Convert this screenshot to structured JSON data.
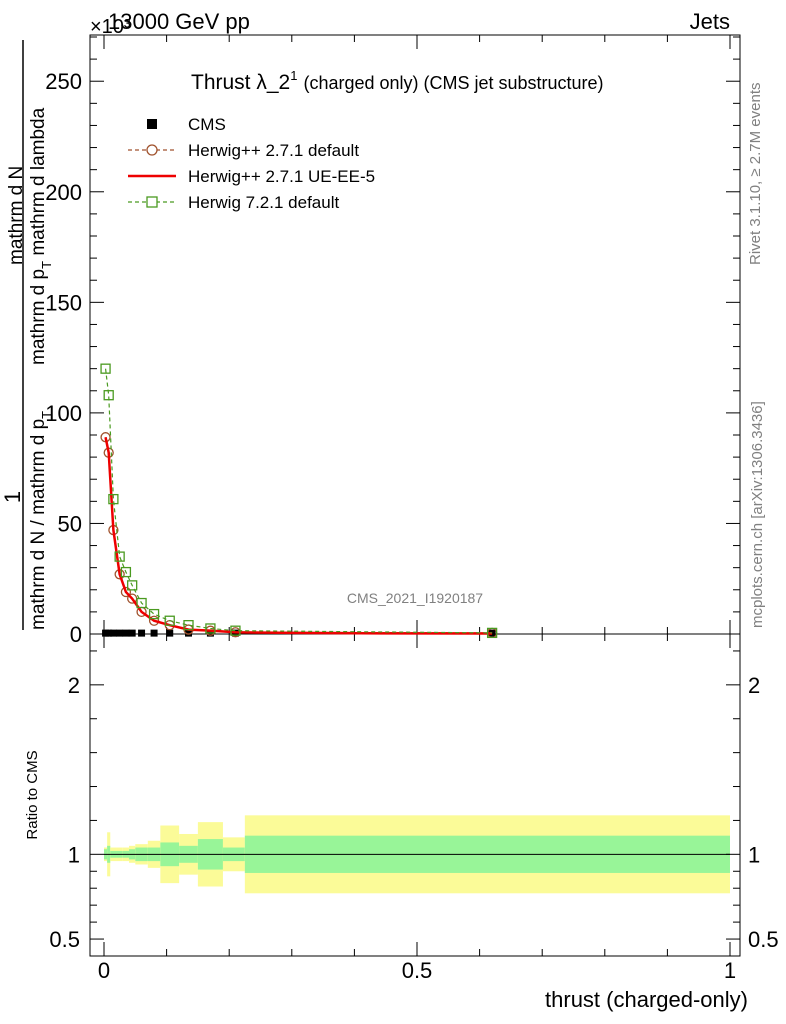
{
  "header": {
    "energy": "13000 GeV pp",
    "process": "Jets",
    "exponent": "×10³"
  },
  "side_labels": {
    "rivet": "Rivet 3.1.10, ≥ 2.7M events",
    "mcplots": "mcplots.cern.ch [arXiv:1306.3436]"
  },
  "chart_data": {
    "type": "line",
    "title_main": "Thrust λ_2",
    "title_sup": "1",
    "title_tail": "(charged only) (CMS jet substructure)",
    "watermark": "CMS_2021_I1920187",
    "xlabel": "thrust (charged-only)",
    "ylabel_top": "1",
    "ylabel_bottom_line1": "mathrm d N / mathrm d p",
    "ylabel_bottom_sub1": "T",
    "ylabel_bottom_line2": "mathrm d N",
    "ylabel_bottom_line3": "mathrm d p",
    "ylabel_bottom_sub3": "T",
    "ylabel_bottom_line4": "mathrm d lambda",
    "ratio_ylabel": "Ratio to CMS",
    "xlim": [
      0,
      1
    ],
    "ylim": [
      0,
      270
    ],
    "ratio_ylim": [
      0.4,
      2.3
    ],
    "x_ticks": [
      0,
      0.5,
      1
    ],
    "x_tick_labels": [
      "0",
      "0.5",
      "1"
    ],
    "y_ticks": [
      0,
      50,
      100,
      150,
      200,
      250
    ],
    "y_tick_labels": [
      "0",
      "50",
      "100",
      "150",
      "200",
      "250"
    ],
    "ratio_ticks": [
      0.5,
      1,
      2
    ],
    "ratio_tick_labels": [
      "0.5",
      "1",
      "2"
    ],
    "legend": [
      {
        "name": "CMS",
        "color": "#000000",
        "marker": "square-filled",
        "line": "none"
      },
      {
        "name": "Herwig++ 2.7.1 default",
        "color": "#a0522d",
        "marker": "circle-open",
        "line": "dashed"
      },
      {
        "name": "Herwig++ 2.7.1 UE-EE-5",
        "color": "#ee0000",
        "marker": "none",
        "line": "solid"
      },
      {
        "name": "Herwig 7.2.1 default",
        "color": "#4a9a20",
        "marker": "square-open",
        "line": "dashed"
      }
    ],
    "series": [
      {
        "name": "CMS",
        "x": [
          0.0025,
          0.0075,
          0.015,
          0.025,
          0.035,
          0.045,
          0.06,
          0.08,
          0.105,
          0.135,
          0.17,
          0.21,
          0.62
        ],
        "y": [
          0.4,
          0.4,
          0.4,
          0.4,
          0.4,
          0.4,
          0.4,
          0.4,
          0.4,
          0.4,
          0.4,
          0.4,
          0.4
        ]
      },
      {
        "name": "Herwig++ 2.7.1 default",
        "x": [
          0.0025,
          0.0075,
          0.015,
          0.025,
          0.035,
          0.045,
          0.06,
          0.08,
          0.105,
          0.135,
          0.17,
          0.21,
          0.62
        ],
        "y": [
          89,
          82,
          47,
          27,
          19,
          16,
          10,
          6,
          4,
          2,
          1.5,
          0.8,
          0.5
        ]
      },
      {
        "name": "Herwig++ 2.7.1 UE-EE-5",
        "x": [
          0.0025,
          0.0075,
          0.015,
          0.025,
          0.035,
          0.045,
          0.06,
          0.08,
          0.105,
          0.135,
          0.17,
          0.21,
          0.3,
          0.45,
          0.62
        ],
        "y": [
          89,
          82,
          47,
          27,
          19,
          16,
          10,
          6,
          4,
          2,
          1.5,
          0.8,
          0.5,
          0.3,
          0.2
        ]
      },
      {
        "name": "Herwig 7.2.1 default",
        "x": [
          0.0025,
          0.0075,
          0.015,
          0.025,
          0.035,
          0.045,
          0.06,
          0.08,
          0.105,
          0.135,
          0.17,
          0.21,
          0.62
        ],
        "y": [
          120,
          108,
          61,
          35,
          28,
          22,
          14,
          9,
          6,
          4,
          2.5,
          1.5,
          0.5
        ]
      }
    ],
    "ratio_bands": {
      "edges": [
        0,
        0.005,
        0.01,
        0.02,
        0.03,
        0.04,
        0.05,
        0.07,
        0.09,
        0.12,
        0.15,
        0.19,
        0.225,
        1.0
      ],
      "inner": [
        0.03,
        0.05,
        0.02,
        0.02,
        0.02,
        0.03,
        0.04,
        0.04,
        0.07,
        0.05,
        0.09,
        0.04,
        0.11
      ],
      "outer": [
        0.04,
        0.13,
        0.04,
        0.04,
        0.04,
        0.05,
        0.06,
        0.08,
        0.17,
        0.12,
        0.19,
        0.1,
        0.23
      ],
      "inner_color": "#98f598",
      "outer_color": "#fbfb98"
    }
  }
}
